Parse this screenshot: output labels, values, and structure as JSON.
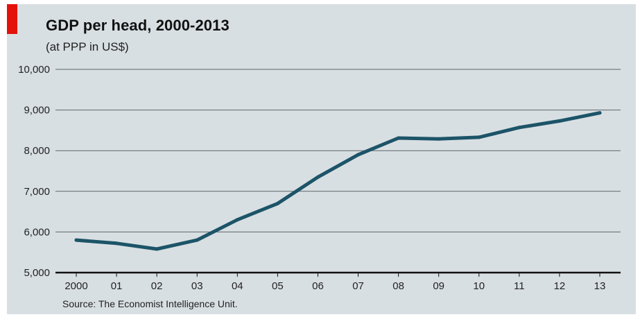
{
  "colors": {
    "background": "#d8dfe2",
    "accent_tab": "#e3120b",
    "line": "#1c5468",
    "grid": "#5c666b",
    "axis": "#111111"
  },
  "chart_data": {
    "type": "line",
    "title": "GDP per head, 2000-2013",
    "subtitle": "(at PPP in US$)",
    "source": "Source: The Economist Intelligence Unit.",
    "categories": [
      "2000",
      "01",
      "02",
      "03",
      "04",
      "05",
      "06",
      "07",
      "08",
      "09",
      "10",
      "11",
      "12",
      "13"
    ],
    "series": [
      {
        "values": [
          5800,
          5720,
          5580,
          5800,
          6300,
          6700,
          7350,
          7900,
          8310,
          8290,
          8330,
          8570,
          8730,
          8930
        ]
      }
    ],
    "yticks": [
      "5,000",
      "6,000",
      "7,000",
      "8,000",
      "9,000",
      "10,000"
    ],
    "ylim": [
      5000,
      10000
    ],
    "grid": true,
    "legend": "none"
  }
}
